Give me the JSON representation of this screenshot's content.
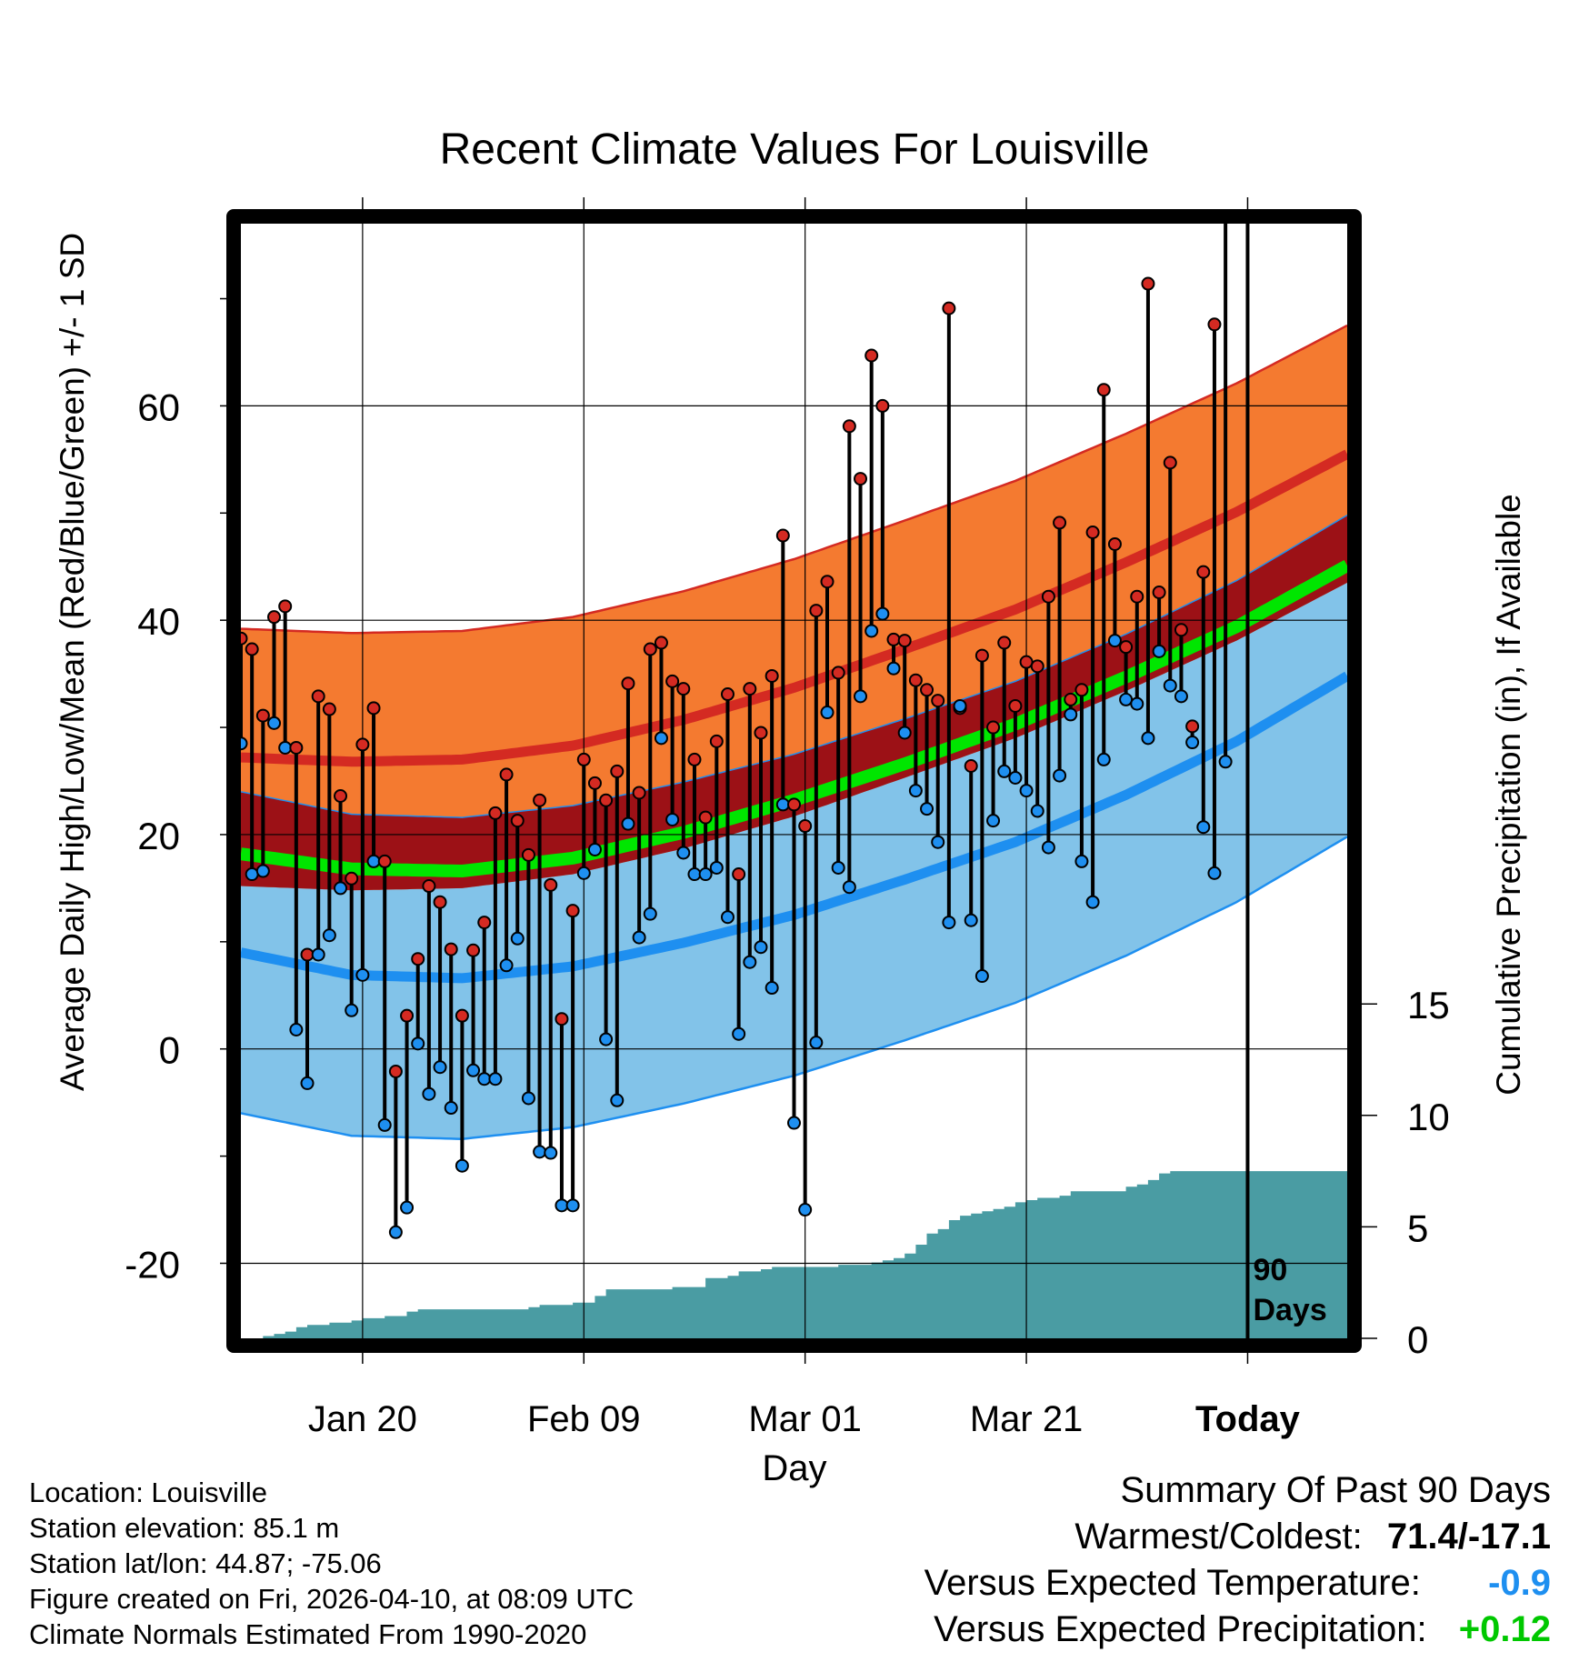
{
  "chart_data": {
    "type": "line",
    "title": "Recent Climate Values For Louisville",
    "xlabel": "Day",
    "ylabel": "Average Daily High/Low/Mean (Red/Blue/Green) +/- 1 SD",
    "y2label": "Cumulative Precipitation (in), If Available",
    "ylim": [
      -27,
      77
    ],
    "y2lim": [
      0,
      50
    ],
    "yticks": [
      -20,
      0,
      20,
      40,
      60
    ],
    "y2ticks": [
      0,
      5,
      10,
      15
    ],
    "x_day_range": [
      1,
      101
    ],
    "x_tick_labels": [
      {
        "day": 12,
        "label": "Jan 20"
      },
      {
        "day": 32,
        "label": "Feb 09"
      },
      {
        "day": 52,
        "label": "Mar 01"
      },
      {
        "day": 72,
        "label": "Mar 21"
      },
      {
        "day": 92,
        "label": "Today"
      }
    ],
    "today_day": 92,
    "today_annotation": [
      "90",
      "Days"
    ],
    "normals_days": [
      1,
      11,
      21,
      31,
      41,
      51,
      61,
      71,
      81,
      91,
      101
    ],
    "normal_high_mean": [
      27.2,
      26.8,
      27.0,
      28.3,
      30.7,
      33.7,
      37.3,
      41.0,
      45.4,
      50.1,
      55.5
    ],
    "normal_high_sd": 12,
    "normal_low_mean": [
      9.0,
      6.9,
      6.6,
      7.7,
      9.9,
      12.5,
      15.8,
      19.3,
      23.7,
      28.7,
      34.8
    ],
    "normal_low_sd": 15,
    "normal_mean_temp": [
      18.2,
      16.8,
      16.6,
      17.8,
      20.2,
      23.2,
      26.6,
      30.3,
      34.7,
      39.4,
      45.1
    ],
    "obs_days": [
      1,
      2,
      3,
      4,
      5,
      6,
      7,
      8,
      9,
      10,
      11,
      12,
      13,
      14,
      15,
      16,
      17,
      18,
      19,
      20,
      21,
      22,
      23,
      24,
      25,
      26,
      27,
      28,
      29,
      30,
      31,
      32,
      33,
      34,
      35,
      36,
      37,
      38,
      39,
      40,
      41,
      42,
      43,
      44,
      45,
      46,
      47,
      48,
      49,
      50,
      51,
      52,
      53,
      54,
      55,
      56,
      57,
      58,
      59,
      60,
      61,
      62,
      63,
      64,
      65,
      66,
      67,
      68,
      69,
      70,
      71,
      72,
      73,
      74,
      75,
      76,
      77,
      78,
      79,
      80,
      81,
      82,
      83,
      84,
      85,
      86,
      87,
      88,
      89,
      90,
      91
    ],
    "daily_high": [
      38.3,
      37.3,
      31.1,
      40.3,
      41.3,
      28.1,
      8.8,
      32.9,
      31.7,
      23.6,
      15.9,
      28.4,
      31.8,
      17.5,
      -2.1,
      3.1,
      8.4,
      15.2,
      13.7,
      9.3,
      3.1,
      9.2,
      11.8,
      22.0,
      25.6,
      21.3,
      18.1,
      23.2,
      15.3,
      2.8,
      12.9,
      27.0,
      24.8,
      23.2,
      25.9,
      34.1,
      23.9,
      37.3,
      37.9,
      34.3,
      33.6,
      27.0,
      21.6,
      28.7,
      33.1,
      16.3,
      33.6,
      29.5,
      34.8,
      47.9,
      22.8,
      20.8,
      40.9,
      43.6,
      35.1,
      58.1,
      53.2,
      64.7,
      60.0,
      38.2,
      38.1,
      34.4,
      33.5,
      32.5,
      69.1,
      31.8,
      26.4,
      36.7,
      30.0,
      37.9,
      32.0,
      36.1,
      35.7,
      42.2,
      49.1,
      32.6,
      33.5,
      48.2,
      61.5,
      47.1,
      37.5,
      42.2,
      71.4,
      42.6,
      54.7,
      39.1,
      30.1,
      44.5,
      67.6
    ],
    "daily_low": [
      28.5,
      16.3,
      16.6,
      30.4,
      28.1,
      1.8,
      -3.2,
      8.8,
      10.6,
      15.0,
      3.6,
      6.9,
      17.5,
      -7.1,
      -17.1,
      -14.8,
      0.5,
      -4.2,
      -1.7,
      -5.5,
      -10.9,
      -2.0,
      -2.8,
      -2.8,
      7.8,
      10.3,
      -4.6,
      -9.6,
      -9.7,
      -14.6,
      -14.6,
      16.4,
      18.6,
      0.9,
      -4.8,
      21.0,
      10.4,
      12.6,
      29.0,
      21.4,
      18.3,
      16.3,
      16.3,
      16.9,
      12.3,
      1.4,
      8.1,
      9.5,
      5.7,
      22.8,
      -6.9,
      -15.0,
      0.6,
      31.4,
      16.9,
      15.1,
      32.9,
      39.0,
      40.6,
      35.5,
      29.5,
      24.1,
      22.4,
      19.3,
      11.8,
      32.0,
      12.0,
      6.8,
      21.3,
      25.9,
      25.3,
      24.1,
      22.2,
      18.8,
      25.5,
      31.2,
      17.5,
      13.7,
      27.0,
      38.1,
      32.6,
      32.2,
      29.0,
      37.1,
      33.9,
      32.9,
      28.6,
      20.7,
      16.4,
      26.8
    ],
    "precip_days": [
      1,
      2,
      3,
      4,
      5,
      6,
      7,
      8,
      9,
      10,
      11,
      12,
      13,
      14,
      15,
      16,
      17,
      18,
      19,
      20,
      21,
      22,
      23,
      24,
      25,
      26,
      27,
      28,
      29,
      30,
      31,
      32,
      33,
      34,
      35,
      36,
      37,
      38,
      39,
      40,
      41,
      42,
      43,
      44,
      45,
      46,
      47,
      48,
      49,
      50,
      51,
      52,
      53,
      54,
      55,
      56,
      57,
      58,
      59,
      60,
      61,
      62,
      63,
      64,
      65,
      66,
      67,
      68,
      69,
      70,
      71,
      72,
      73,
      74,
      75,
      76,
      77,
      78,
      79,
      80,
      81,
      82,
      83,
      84,
      85,
      86,
      87,
      88,
      89,
      90,
      91,
      92,
      93,
      94,
      95,
      96,
      97,
      98,
      99,
      100,
      101
    ],
    "cumulative_precip": [
      0.0,
      0.0,
      0.1,
      0.2,
      0.3,
      0.5,
      0.6,
      0.6,
      0.7,
      0.7,
      0.8,
      0.9,
      0.9,
      1.0,
      1.0,
      1.2,
      1.3,
      1.3,
      1.3,
      1.3,
      1.3,
      1.3,
      1.3,
      1.3,
      1.3,
      1.3,
      1.4,
      1.5,
      1.5,
      1.5,
      1.6,
      1.6,
      1.9,
      2.2,
      2.2,
      2.2,
      2.2,
      2.2,
      2.2,
      2.3,
      2.3,
      2.3,
      2.7,
      2.7,
      2.8,
      3.0,
      3.0,
      3.1,
      3.2,
      3.2,
      3.2,
      3.2,
      3.2,
      3.2,
      3.3,
      3.3,
      3.3,
      3.4,
      3.5,
      3.6,
      3.8,
      4.2,
      4.7,
      4.9,
      5.3,
      5.5,
      5.6,
      5.7,
      5.8,
      5.9,
      6.1,
      6.2,
      6.3,
      6.3,
      6.4,
      6.6,
      6.6,
      6.6,
      6.6,
      6.6,
      6.8,
      6.9,
      7.1,
      7.4,
      7.5,
      7.5,
      7.5,
      7.5,
      7.5,
      7.5,
      7.5,
      7.5,
      7.5,
      7.5,
      7.5,
      7.5,
      7.5,
      7.5,
      7.5,
      7.5,
      7.5
    ],
    "colors": {
      "high_band": "#f47a30",
      "high_band_edge": "#d42a22",
      "high_mean": "#d42a22",
      "overlap_band": "#9c1116",
      "low_band": "#82c3e9",
      "low_band_edge": "#1e8ff0",
      "low_mean": "#1e8ff0",
      "mean_temp": "#00e600",
      "precip": "#4a9ca3",
      "high_dot": "#d42a22",
      "low_dot": "#1e8ff0"
    }
  },
  "station": {
    "location": "Location: Louisville",
    "elevation": "Station elevation: 85.1 m",
    "latlon": "Station lat/lon: 44.87; -75.06",
    "created": "Figure created on Fri, 2026-04-10, at 08:09 UTC",
    "normals": "Climate Normals Estimated From 1990-2020"
  },
  "summary": {
    "title": "Summary Of Past 90 Days",
    "warm_cold_label": "Warmest/Coldest:",
    "warm_cold_value": "71.4/-17.1",
    "temp_label": "Versus Expected Temperature:",
    "temp_value": "-0.9",
    "temp_color": "#1e8ff0",
    "precip_label": "Versus Expected Precipitation:",
    "precip_value": "+0.12",
    "precip_color": "#00c800"
  }
}
